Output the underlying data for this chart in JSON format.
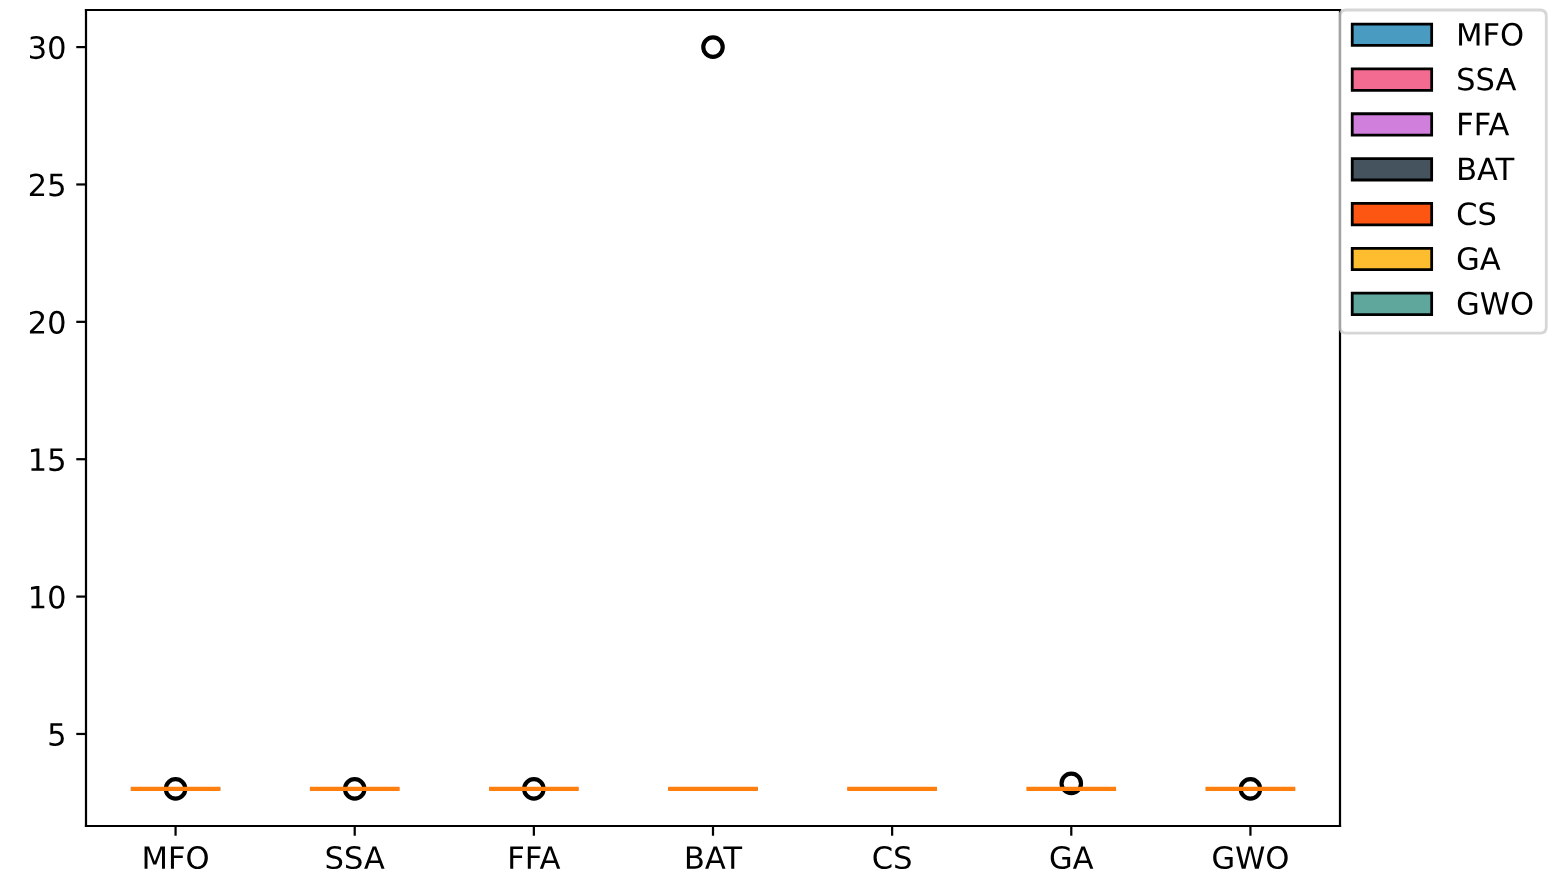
{
  "chart_data": {
    "type": "box",
    "categories": [
      "MFO",
      "SSA",
      "FFA",
      "BAT",
      "CS",
      "GA",
      "GWO"
    ],
    "series": [
      {
        "name": "MFO",
        "color": "#4a9bc1",
        "boxes": [
          {
            "low": 3,
            "q1": 3,
            "median": 3,
            "q3": 3,
            "high": 3,
            "outliers": [
              3
            ]
          },
          null,
          null,
          null,
          null,
          null,
          null
        ]
      },
      {
        "name": "SSA",
        "color": "#f46b92",
        "boxes": [
          null,
          {
            "low": 3,
            "q1": 3,
            "median": 3,
            "q3": 3,
            "high": 3,
            "outliers": [
              3
            ]
          },
          null,
          null,
          null,
          null,
          null
        ]
      },
      {
        "name": "FFA",
        "color": "#d17fdc",
        "boxes": [
          null,
          null,
          {
            "low": 3,
            "q1": 3,
            "median": 3,
            "q3": 3,
            "high": 3,
            "outliers": [
              3
            ]
          },
          null,
          null,
          null,
          null
        ]
      },
      {
        "name": "BAT",
        "color": "#44535e",
        "boxes": [
          null,
          null,
          null,
          {
            "low": 3,
            "q1": 3,
            "median": 3,
            "q3": 3,
            "high": 3,
            "outliers": [
              30
            ]
          },
          null,
          null,
          null
        ]
      },
      {
        "name": "CS",
        "color": "#fd5512",
        "boxes": [
          null,
          null,
          null,
          null,
          {
            "low": 3,
            "q1": 3,
            "median": 3,
            "q3": 3,
            "high": 3
          },
          null,
          null
        ]
      },
      {
        "name": "GA",
        "color": "#fdbd2e",
        "boxes": [
          null,
          null,
          null,
          null,
          null,
          {
            "low": 3,
            "q1": 3,
            "median": 3,
            "q3": 3,
            "high": 3,
            "outliers": [
              3.2
            ]
          },
          null
        ]
      },
      {
        "name": "GWO",
        "color": "#5fa79c",
        "boxes": [
          null,
          null,
          null,
          null,
          null,
          null,
          {
            "low": 3,
            "q1": 3,
            "median": 3,
            "q3": 3,
            "high": 3,
            "outliers": [
              3
            ]
          }
        ]
      }
    ],
    "ylim": [
      1.65,
      31.35
    ],
    "yticks": [
      5,
      10,
      15,
      20,
      25,
      30
    ],
    "legend": "top right"
  }
}
